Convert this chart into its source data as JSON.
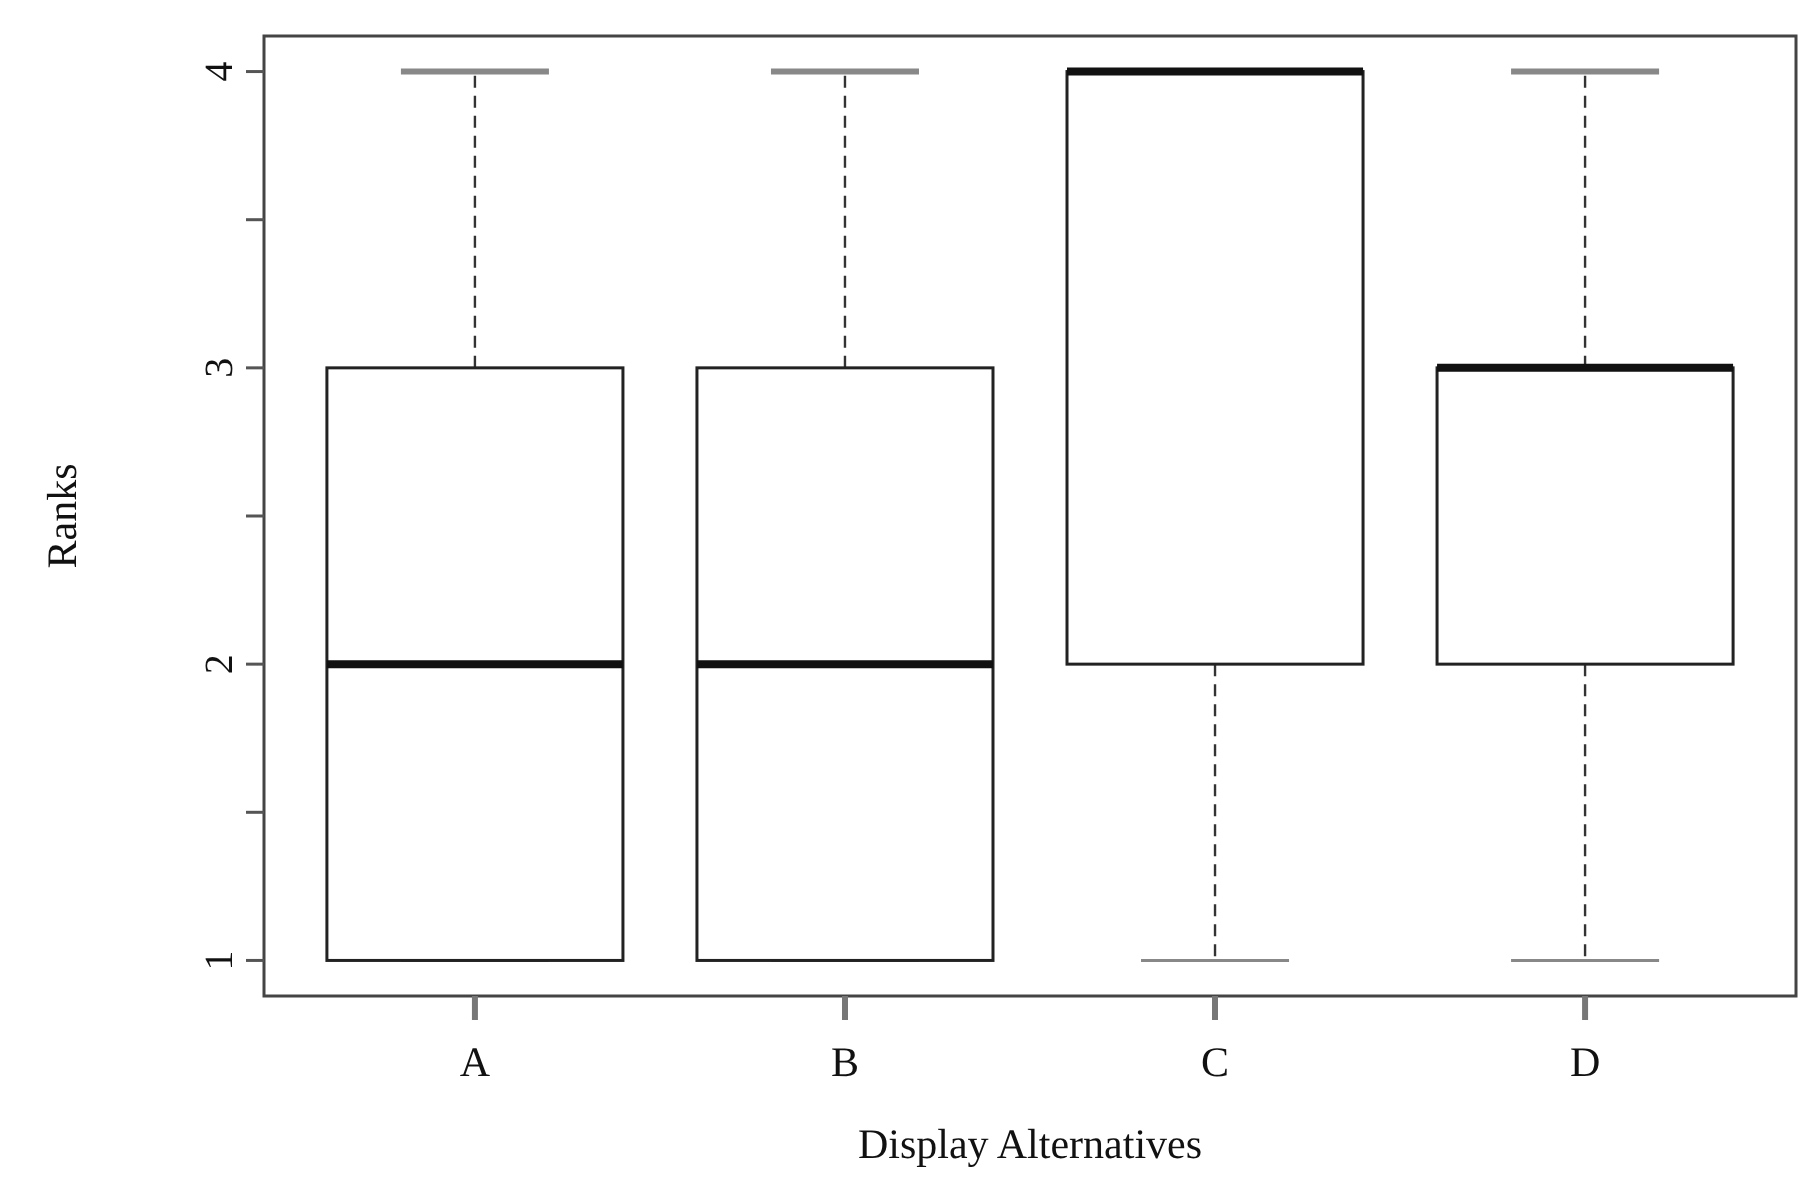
{
  "chart_data": {
    "type": "box",
    "xlabel": "Display  Alternatives",
    "ylabel": "Ranks",
    "categories": [
      "A",
      "B",
      "C",
      "D"
    ],
    "boxes": [
      {
        "low": 1,
        "q1": 1,
        "median": 2,
        "q3": 3,
        "high": 4
      },
      {
        "low": 1,
        "q1": 1,
        "median": 2,
        "q3": 3,
        "high": 4
      },
      {
        "low": 1,
        "q1": 2,
        "median": 4,
        "q3": 4,
        "high": 4
      },
      {
        "low": 1,
        "q1": 2,
        "median": 3,
        "q3": 3,
        "high": 4
      }
    ],
    "ylim": [
      0.88,
      4.12
    ],
    "yticks": [
      1,
      {
        "value": 1.5,
        "label": null
      },
      2,
      {
        "value": 2.5,
        "label": null
      },
      3,
      {
        "value": 3.5,
        "label": null
      },
      4
    ],
    "grid": false
  }
}
